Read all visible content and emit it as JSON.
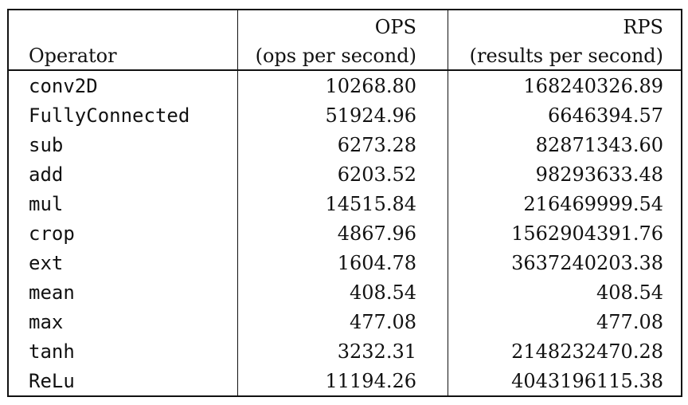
{
  "header": {
    "operator": "Operator",
    "ops_title": "OPS",
    "ops_sub": "(ops per second)",
    "rps_title": "RPS",
    "rps_sub": "(results per second)"
  },
  "rows": [
    {
      "operator": "conv2D",
      "ops": "10268.80",
      "rps": "168240326.89"
    },
    {
      "operator": "FullyConnected",
      "ops": "51924.96",
      "rps": "6646394.57"
    },
    {
      "operator": "sub",
      "ops": "6273.28",
      "rps": "82871343.60"
    },
    {
      "operator": "add",
      "ops": "6203.52",
      "rps": "98293633.48"
    },
    {
      "operator": "mul",
      "ops": "14515.84",
      "rps": "216469999.54"
    },
    {
      "operator": "crop",
      "ops": "4867.96",
      "rps": "1562904391.76"
    },
    {
      "operator": "ext",
      "ops": "1604.78",
      "rps": "3637240203.38"
    },
    {
      "operator": "mean",
      "ops": "408.54",
      "rps": "408.54"
    },
    {
      "operator": "max",
      "ops": "477.08",
      "rps": "477.08"
    },
    {
      "operator": "tanh",
      "ops": "3232.31",
      "rps": "2148232470.28"
    },
    {
      "operator": "ReLu",
      "ops": "11194.26",
      "rps": "4043196115.38"
    }
  ]
}
